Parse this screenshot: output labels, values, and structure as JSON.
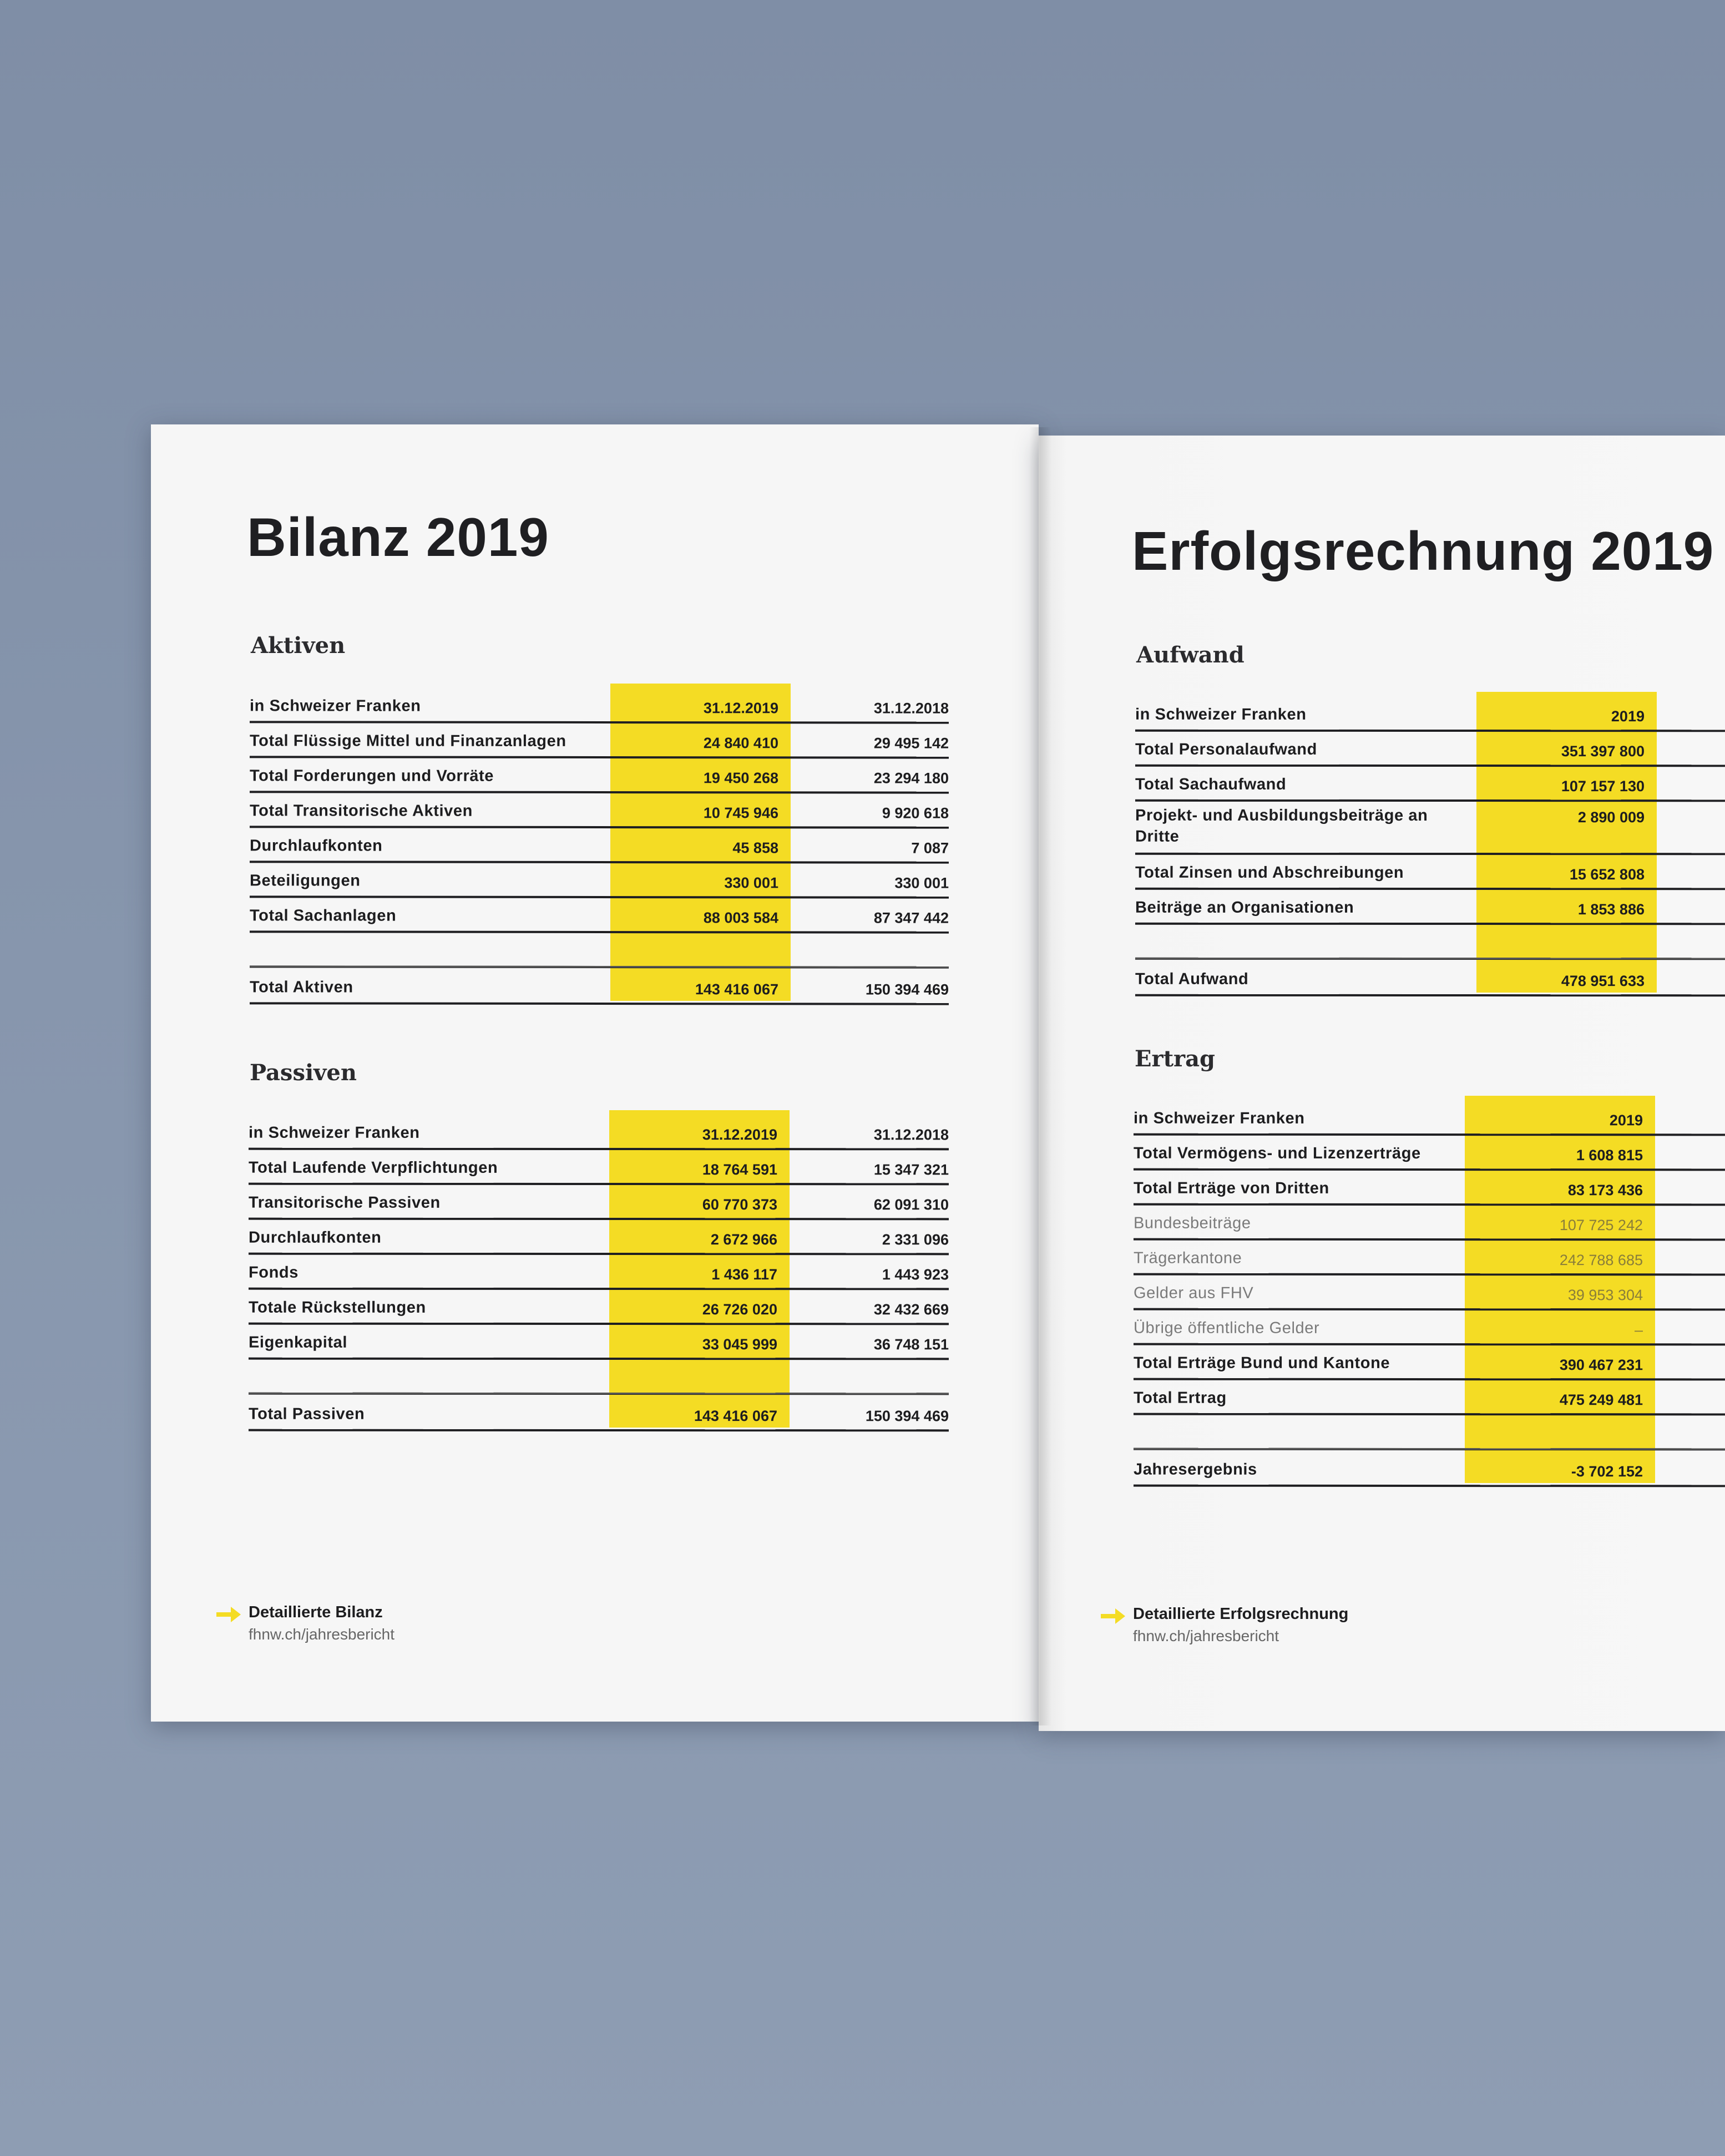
{
  "left": {
    "title": "Bilanz 2019",
    "aktiven": {
      "heading": "Aktiven",
      "header": {
        "label": "in Schweizer Franken",
        "col1": "31.12.2019",
        "col2": "31.12.2018"
      },
      "rows": [
        {
          "label": "Total Flüssige Mittel und Finanzanlagen",
          "v1": "24 840 410",
          "v2": "29 495 142"
        },
        {
          "label": "Total Forderungen und Vorräte",
          "v1": "19 450 268",
          "v2": "23 294 180"
        },
        {
          "label": "Total Transitorische Aktiven",
          "v1": "10 745 946",
          "v2": "9 920 618"
        },
        {
          "label": "Durchlaufkonten",
          "v1": "45 858",
          "v2": "7 087"
        },
        {
          "label": "Beteiligungen",
          "v1": "330 001",
          "v2": "330 001"
        },
        {
          "label": "Total Sachanlagen",
          "v1": "88 003 584",
          "v2": "87 347 442"
        },
        {
          "label": "",
          "v1": "",
          "v2": ""
        }
      ],
      "total": {
        "label": "Total Aktiven",
        "v1": "143 416 067",
        "v2": "150 394 469"
      }
    },
    "passiven": {
      "heading": "Passiven",
      "header": {
        "label": "in Schweizer Franken",
        "col1": "31.12.2019",
        "col2": "31.12.2018"
      },
      "rows": [
        {
          "label": "Total Laufende Verpflichtungen",
          "v1": "18 764 591",
          "v2": "15 347 321"
        },
        {
          "label": "Transitorische Passiven",
          "v1": "60 770 373",
          "v2": "62 091 310"
        },
        {
          "label": "Durchlaufkonten",
          "v1": "2 672 966",
          "v2": "2 331 096"
        },
        {
          "label": "Fonds",
          "v1": "1 436 117",
          "v2": "1 443 923"
        },
        {
          "label": "Totale Rückstellungen",
          "v1": "26 726 020",
          "v2": "32 432 669"
        },
        {
          "label": "Eigenkapital",
          "v1": "33 045 999",
          "v2": "36 748 151"
        },
        {
          "label": "",
          "v1": "",
          "v2": ""
        }
      ],
      "total": {
        "label": "Total Passiven",
        "v1": "143 416 067",
        "v2": "150 394 469"
      }
    },
    "footer": {
      "title": "Detaillierte Bilanz",
      "url": "fhnw.ch/jahresbericht"
    }
  },
  "right": {
    "title": "Erfolgsrechnung 2019",
    "aufwand": {
      "heading": "Aufwand",
      "header": {
        "label": "in Schweizer Franken",
        "col1": "2019"
      },
      "rows": [
        {
          "label": "Total Personalaufwand",
          "v1": "351 397 800"
        },
        {
          "label": "Total Sachaufwand",
          "v1": "107 157 130"
        },
        {
          "label": "Projekt- und Ausbildungsbeiträge an Dritte",
          "v1": "2 890 009"
        },
        {
          "label": "Total Zinsen und Abschreibungen",
          "v1": "15 652 808"
        },
        {
          "label": "Beiträge an Organisationen",
          "v1": "1 853 886"
        },
        {
          "label": "",
          "v1": ""
        }
      ],
      "total": {
        "label": "Total Aufwand",
        "v1": "478 951 633"
      }
    },
    "ertrag": {
      "heading": "Ertrag",
      "header": {
        "label": "in Schweizer Franken",
        "col1": "2019"
      },
      "rows": [
        {
          "label": "Total Vermögens- und Lizenzerträge",
          "v1": "1 608 815"
        },
        {
          "label": "Total Erträge von Dritten",
          "v1": "83 173 436"
        },
        {
          "label": "Bundesbeiträge",
          "v1": "107 725 242"
        },
        {
          "label": "Trägerkantone",
          "v1": "242 788 685"
        },
        {
          "label": "Gelder aus FHV",
          "v1": "39 953 304"
        },
        {
          "label": "Übrige öffentliche Gelder",
          "v1": "–"
        },
        {
          "label": "Total Erträge Bund und Kantone",
          "v1": "390 467 231"
        },
        {
          "label": "Total Ertrag",
          "v1": "475 249 481"
        },
        {
          "label": "",
          "v1": ""
        }
      ],
      "total": {
        "label": "Jahresergebnis",
        "v1": "-3 702 152"
      }
    },
    "footer": {
      "title": "Detaillierte Erfolgsrechnung",
      "url": "fhnw.ch/jahresbericht"
    }
  },
  "colors": {
    "highlight": "#f4dc24",
    "arrow": "#f4dc24",
    "background": "#8796ad"
  }
}
